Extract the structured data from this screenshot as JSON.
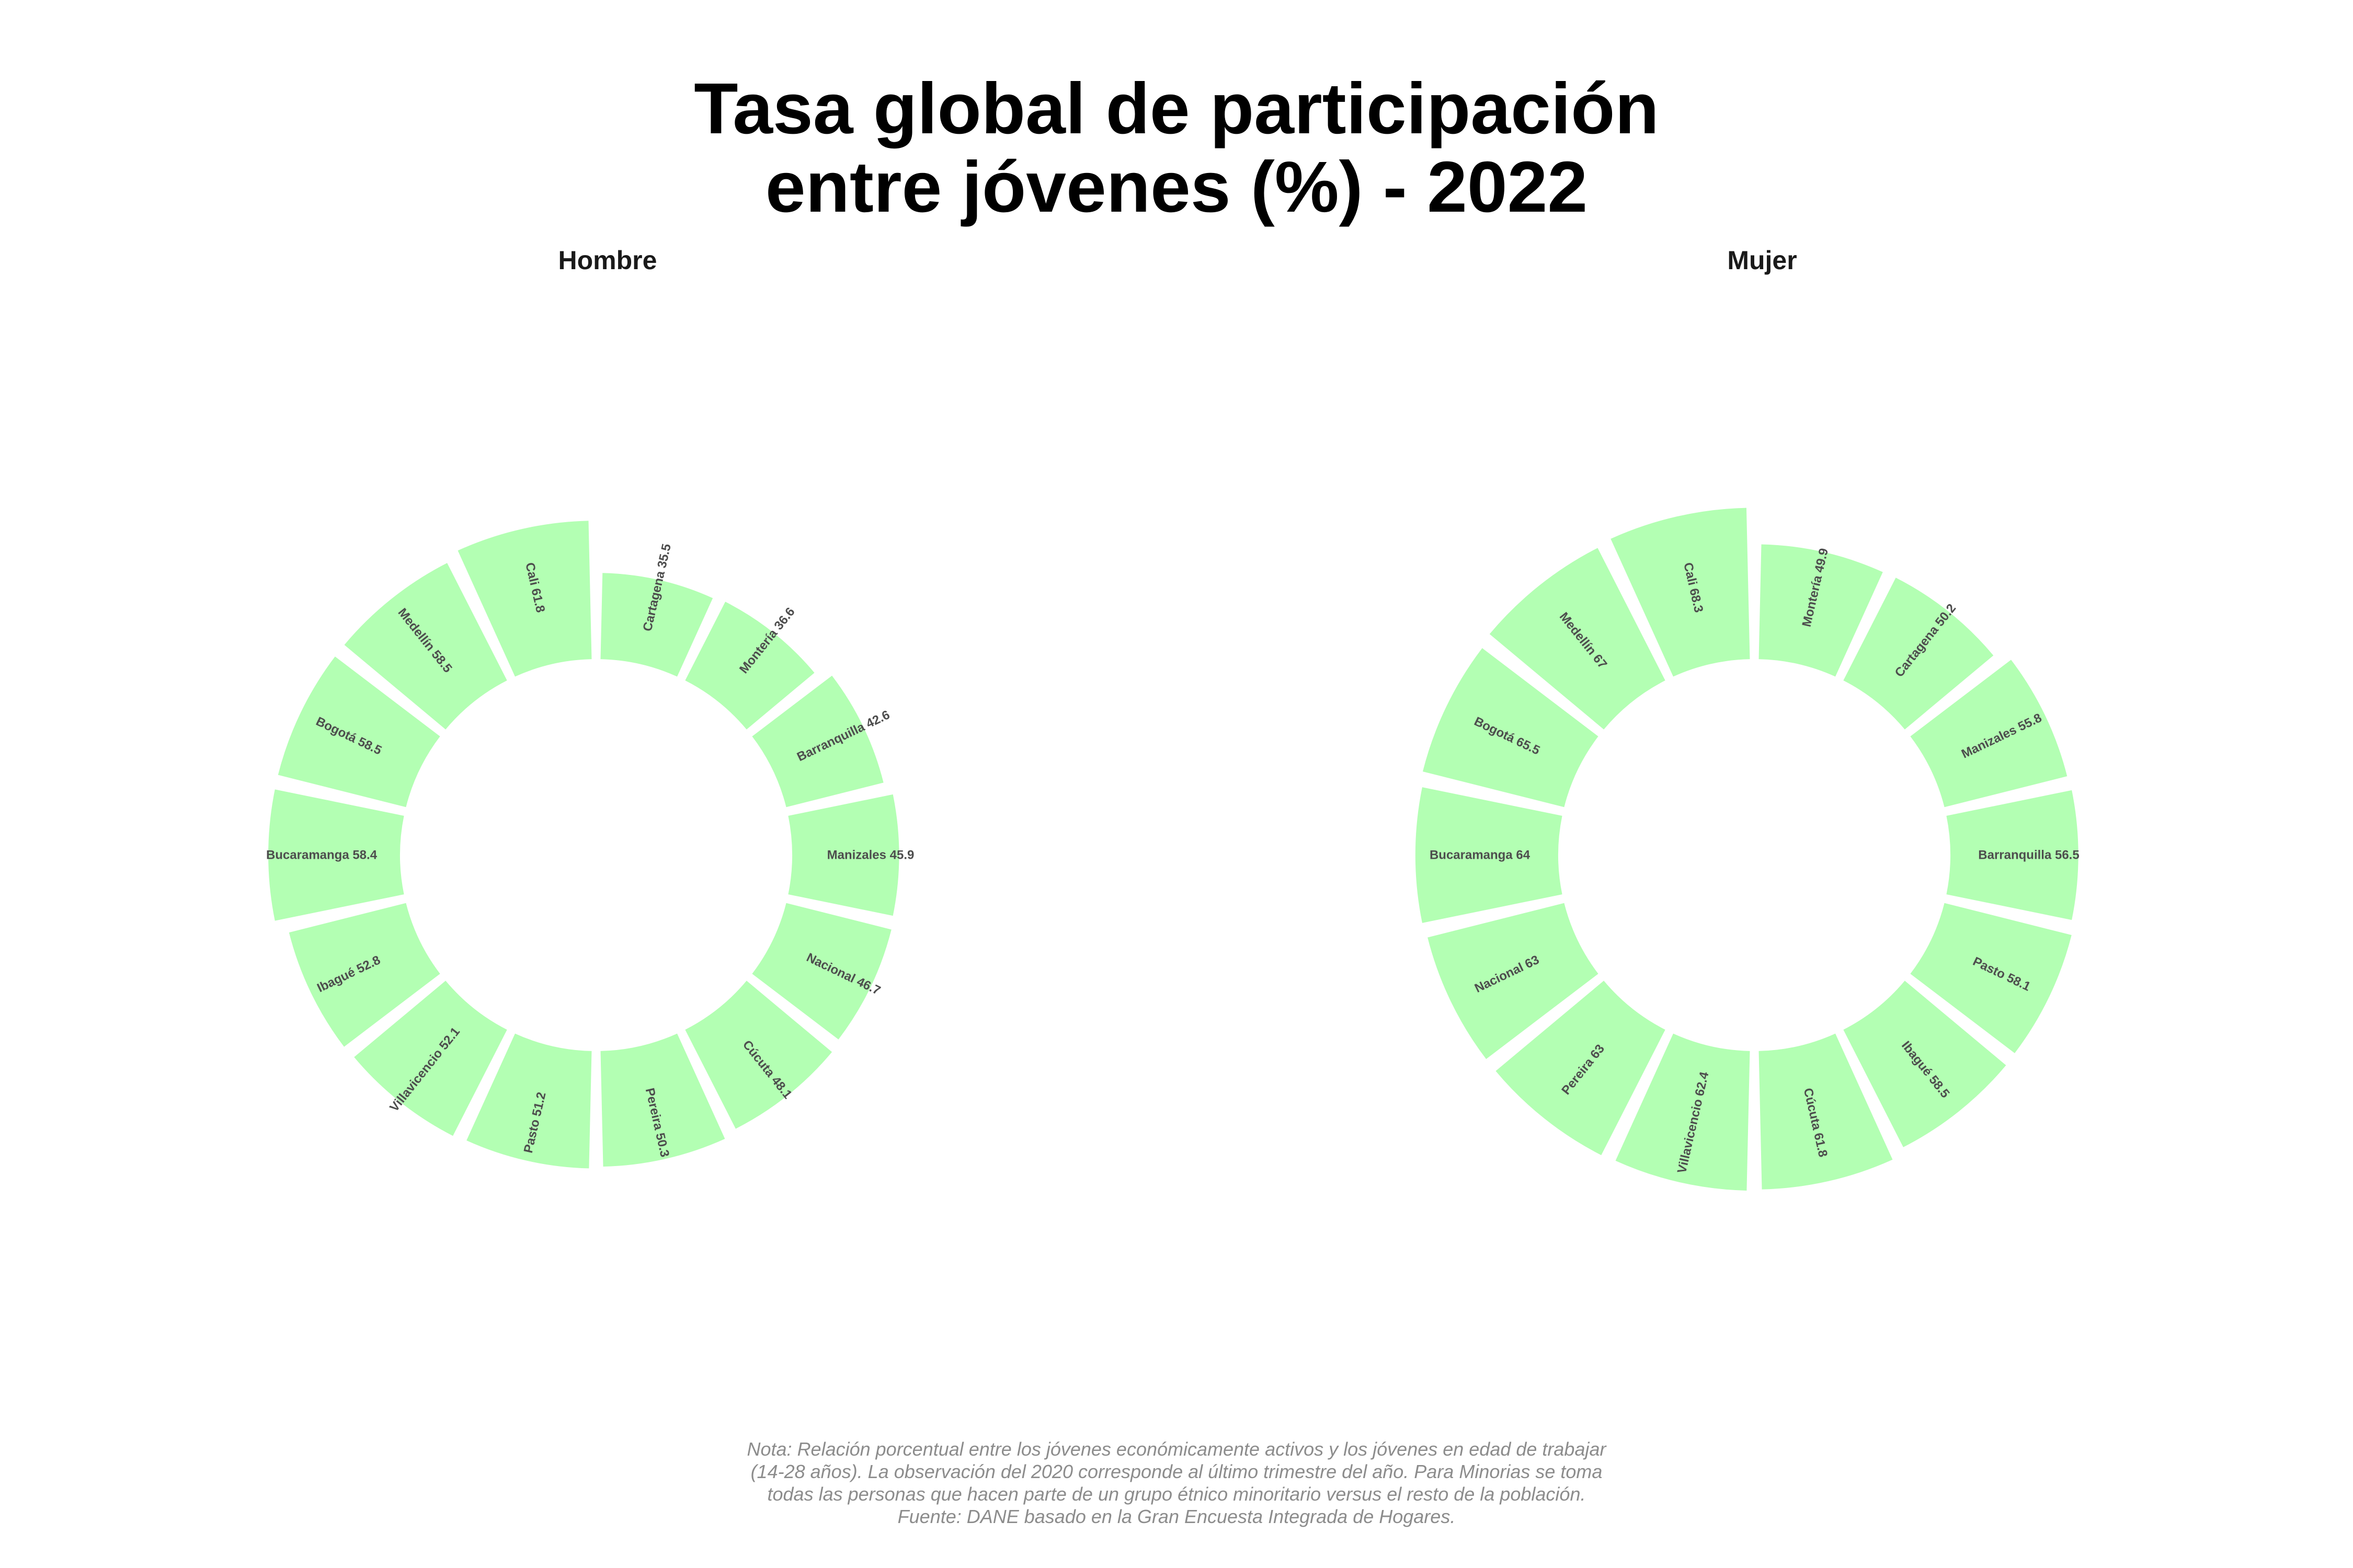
{
  "chart_data": [
    {
      "type": "bar",
      "subtype": "circular-bar",
      "facet": "Hombre",
      "bar_color": "#b3ffb3",
      "categories": [
        "Cartagena",
        "Montería",
        "Barranquilla",
        "Manizales",
        "Nacional",
        "Cúcuta",
        "Pereira",
        "Pasto",
        "Villavicencio",
        "Ibagué",
        "Bucaramanga",
        "Bogotá",
        "Medellín",
        "Cali"
      ],
      "values": [
        35.5,
        36.6,
        42.6,
        45.9,
        46.7,
        48.1,
        50.3,
        51.2,
        52.1,
        52.8,
        58.4,
        58.5,
        58.5,
        61.8
      ],
      "labels": [
        "Cartagena 35.5",
        "Montería 36.6",
        "Barranquilla 42.6",
        "Manizales 45.9",
        "Nacional 46.7",
        "Cúcuta 48.1",
        "Pereira 50.3",
        "Pasto 51.2",
        "Villavicencio 52.1",
        "Ibagué 52.8",
        "Bucaramanga 58.4",
        "Bogotá 58.5",
        "Medellín 58.5",
        "Cali 61.8"
      ]
    },
    {
      "type": "bar",
      "subtype": "circular-bar",
      "facet": "Mujer",
      "bar_color": "#b3ffb3",
      "categories": [
        "Montería",
        "Cartagena",
        "Manizales",
        "Barranquilla",
        "Pasto",
        "Ibagué",
        "Cúcuta",
        "Villavicencio",
        "Pereira",
        "Nacional",
        "Bucaramanga",
        "Bogotá",
        "Medellín",
        "Cali"
      ],
      "values": [
        49.9,
        50.2,
        55.8,
        56.5,
        58.1,
        58.5,
        61.8,
        62.4,
        63,
        63,
        64,
        65.5,
        67,
        68.3
      ],
      "labels": [
        "Montería 49.9",
        "Cartagena 50.2",
        "Manizales 55.8",
        "Barranquilla 56.5",
        "Pasto 58.1",
        "Ibagué 58.5",
        "Cúcuta 61.8",
        "Villavicencio 62.4",
        "Pereira 63",
        "Nacional 63",
        "Bucaramanga 64",
        "Bogotá 65.5",
        "Medellín 67",
        "Cali 68.3"
      ]
    }
  ],
  "title": [
    "Tasa global de participación",
    "entre jóvenes (%) - 2022"
  ],
  "note": [
    "Nota: Relación porcentual entre los jóvenes económicamente activos y los jóvenes en edad de trabajar",
    "(14-28 años). La observación del 2020 corresponde al último trimestre del año. Para Minorias se toma",
    "todas las personas que hacen parte de un grupo étnico minoritario versus el resto de la población.",
    "Fuente: DANE basado en la Gran Encuesta Integrada de Hogares."
  ]
}
